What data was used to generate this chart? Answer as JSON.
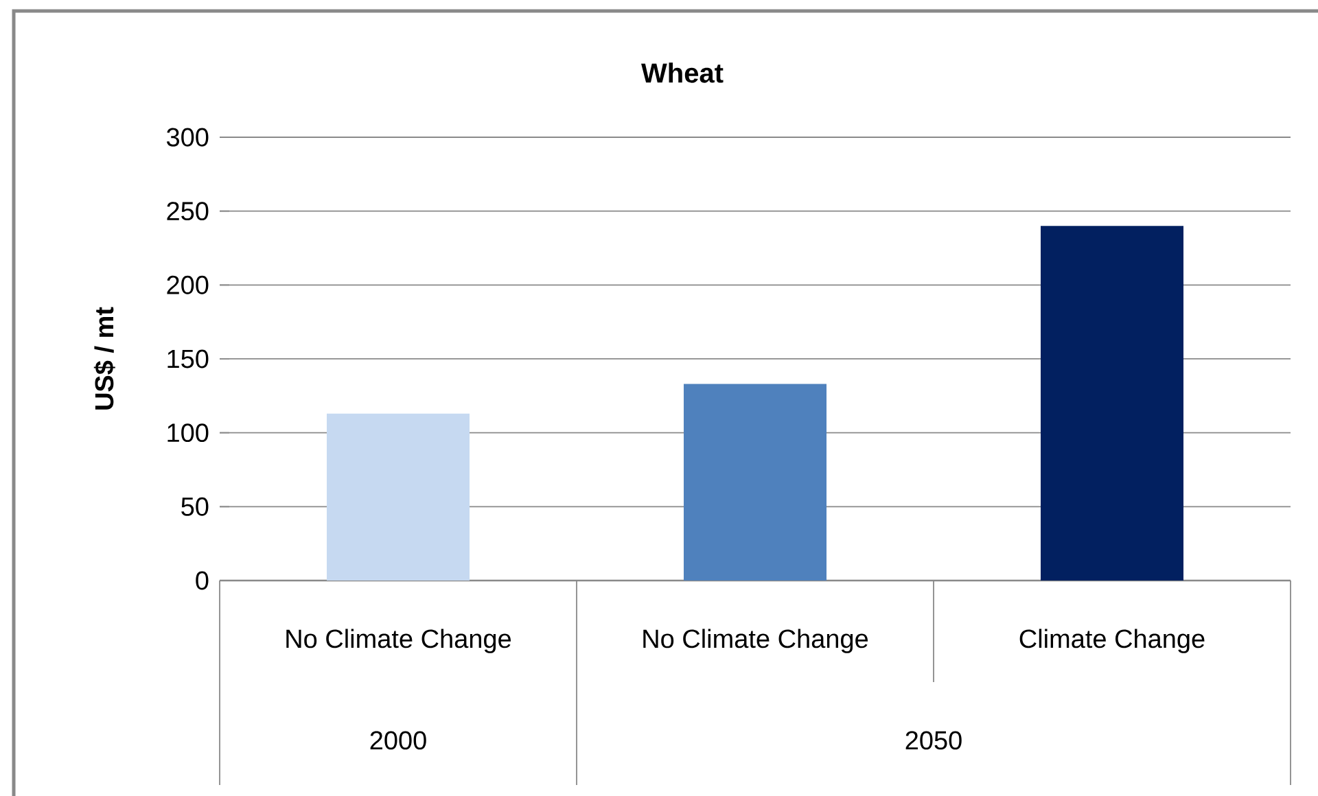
{
  "chart_data": {
    "type": "bar",
    "title": "Wheat",
    "ylabel": "US$ / mt",
    "categories": [
      "No Climate Change",
      "No Climate Change",
      "Climate Change"
    ],
    "values": [
      113,
      133,
      240
    ],
    "colors": [
      "#c6d9f1",
      "#4f81bd",
      "#022060"
    ],
    "ylim": [
      0,
      300
    ],
    "yticks": [
      0,
      50,
      100,
      150,
      200,
      250,
      300
    ],
    "grid": "y",
    "annotations": [
      "2000",
      "2050"
    ]
  }
}
